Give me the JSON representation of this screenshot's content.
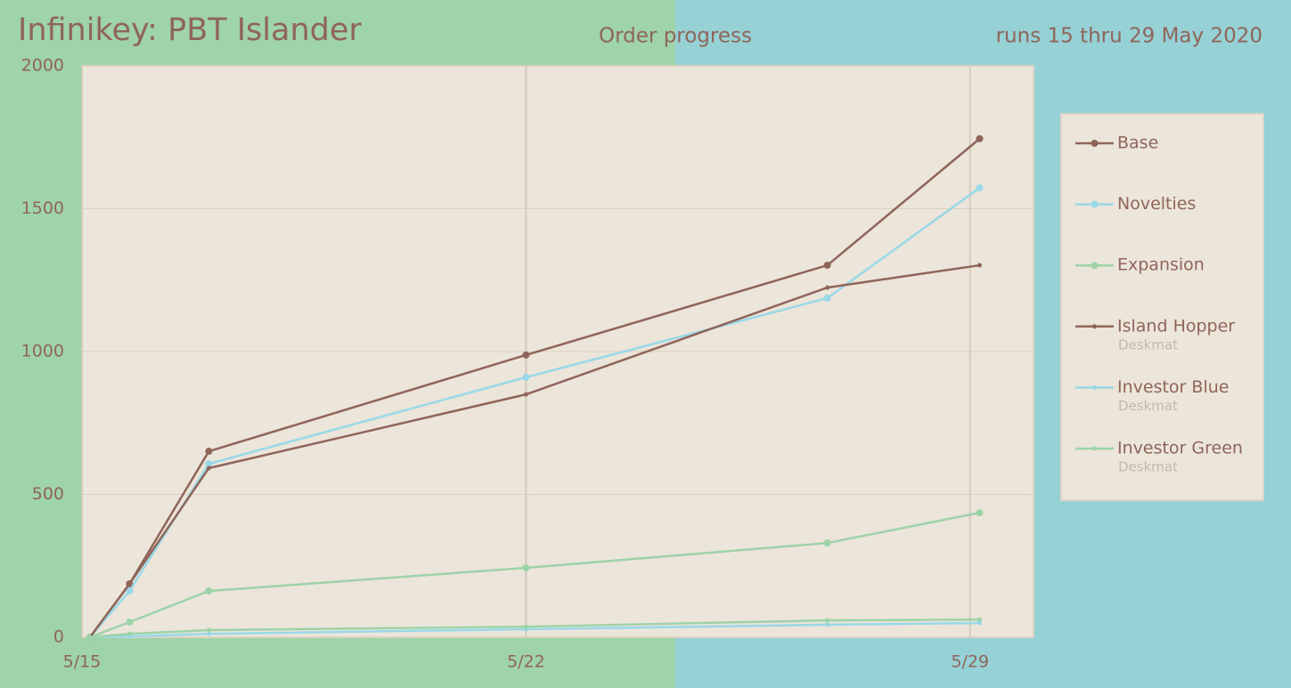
{
  "chart_data": {
    "type": "line",
    "title": "Infinikey: PBT Islander",
    "subtitle": "Order progress",
    "annotation": "runs 15 thru 29 May 2020",
    "x": [
      0.125,
      0.75,
      2,
      7,
      11.75,
      14.15
    ],
    "xlim": [
      0,
      15
    ],
    "xticks": [
      {
        "value": 0,
        "label": "5/15"
      },
      {
        "value": 7,
        "label": "5/22"
      },
      {
        "value": 14,
        "label": "5/29"
      }
    ],
    "ylim": [
      0,
      2000
    ],
    "yticks": [
      0,
      500,
      1000,
      1500,
      2000
    ],
    "grid": true,
    "legend": "right",
    "series": [
      {
        "name": "Base",
        "color": "#8f6559",
        "marker_size": 4,
        "values": [
          0,
          187,
          651,
          988,
          1302,
          1745
        ]
      },
      {
        "name": "Novelties",
        "color": "#99d8e8",
        "marker_size": 4,
        "values": [
          0,
          162,
          607,
          910,
          1187,
          1573
        ]
      },
      {
        "name": "Expansion",
        "color": "#9dd3a8",
        "marker_size": 4,
        "values": [
          0,
          53,
          162,
          243,
          330,
          436
        ]
      },
      {
        "name": "Island Hopper",
        "subtitle": "Deskmat",
        "color": "#8f6559",
        "marker_size": 2.5,
        "values": [
          0,
          187,
          592,
          850,
          1224,
          1302
        ]
      },
      {
        "name": "Investor Blue",
        "subtitle": "Deskmat",
        "color": "#99d8e8",
        "marker_size": 2.5,
        "values": [
          0,
          3,
          12,
          28,
          44,
          50
        ]
      },
      {
        "name": "Investor Green",
        "subtitle": "Deskmat",
        "color": "#9dd3a8",
        "marker_size": 2.5,
        "values": [
          0,
          12,
          25,
          37,
          59,
          62
        ]
      }
    ]
  }
}
